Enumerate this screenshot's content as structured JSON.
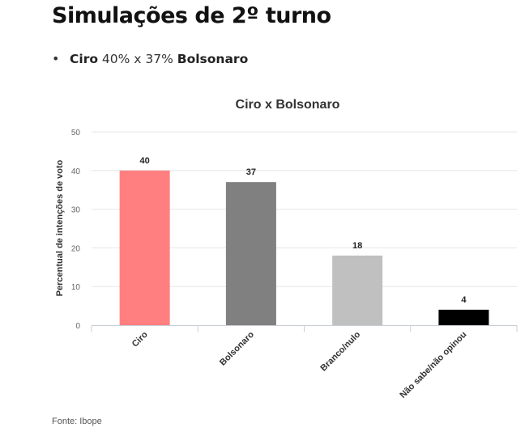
{
  "heading": "Simulações de 2º turno",
  "summary": {
    "candidate_a": "Ciro",
    "result_text": " 40% x 37% ",
    "candidate_b": "Bolsonaro"
  },
  "chart_data": {
    "type": "bar",
    "title": "Ciro x Bolsonaro",
    "ylabel": "Percentual de intenções de voto",
    "xlabel": "",
    "categories": [
      "Ciro",
      "Bolsonaro",
      "Branco/nulo",
      "Não sabe/não opinou"
    ],
    "values": [
      40,
      37,
      18,
      4
    ],
    "colors": [
      "#ff7f80",
      "#808080",
      "#c0c0c0",
      "#000000"
    ],
    "ylim": [
      0,
      50
    ],
    "yticks": [
      0,
      10,
      20,
      30,
      40,
      50
    ],
    "grid": true,
    "legend": "none",
    "data_labels": true
  },
  "source": "Fonte: Ibope"
}
